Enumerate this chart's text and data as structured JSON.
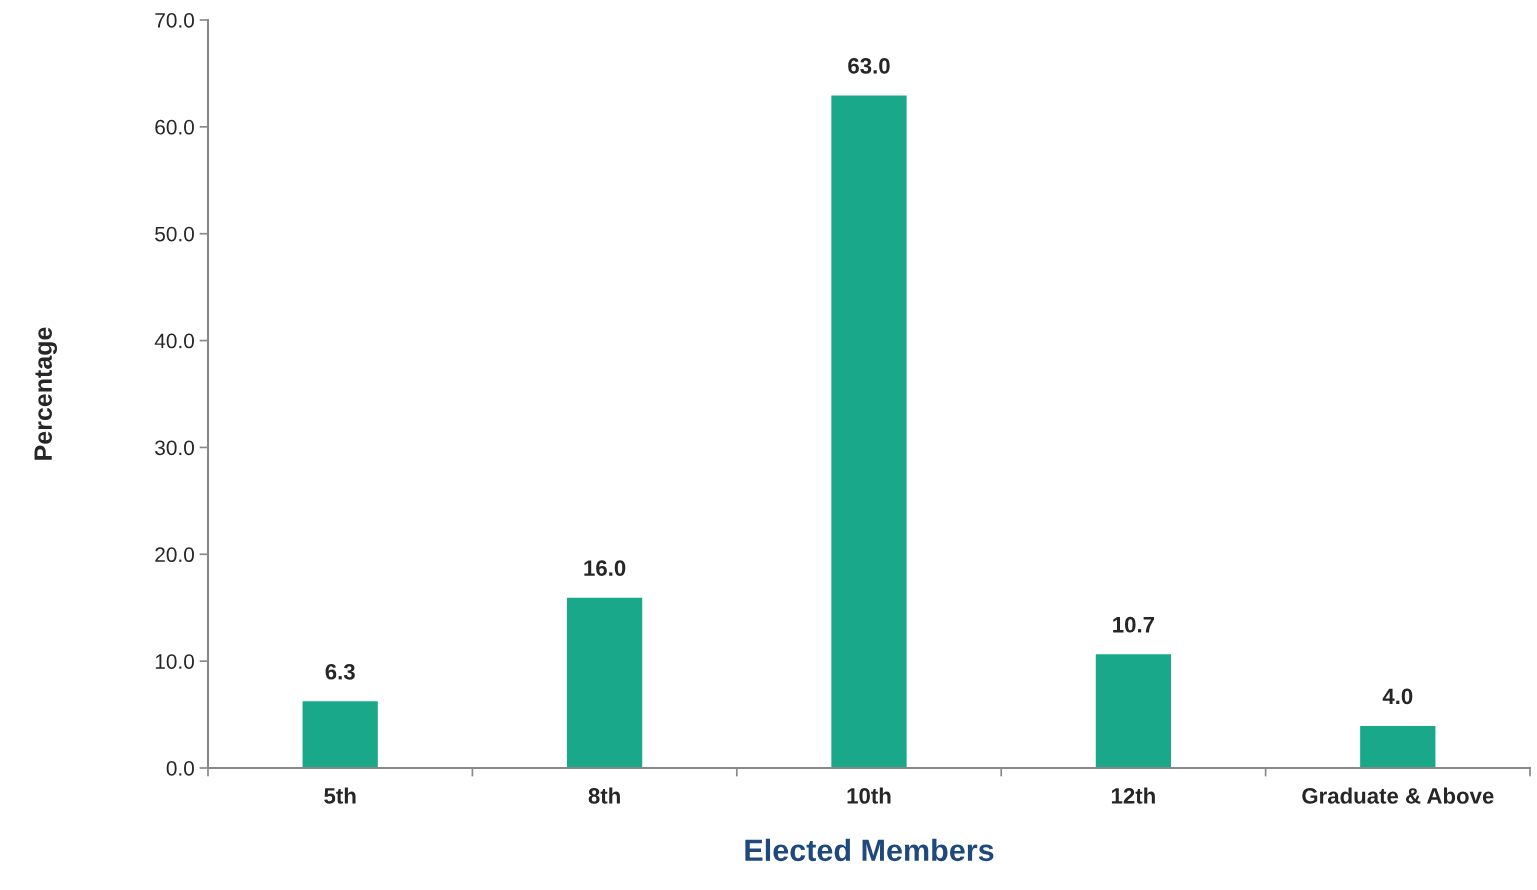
{
  "chart_data": {
    "type": "bar",
    "xlabel": "Elected Members",
    "ylabel": "Percentage",
    "categories": [
      "5th",
      "8th",
      "10th",
      "12th",
      "Graduate & Above"
    ],
    "values": [
      6.3,
      16.0,
      63.0,
      10.7,
      4.0
    ],
    "color": "#1aa88a",
    "value_labels": [
      "6.3",
      "16.0",
      "63.0",
      "10.7",
      "4.0"
    ],
    "ylim": [
      0,
      70
    ],
    "yticks": [
      {
        "value": 0,
        "label": "0.0"
      },
      {
        "value": 10,
        "label": "10.0"
      },
      {
        "value": 20,
        "label": "20.0"
      },
      {
        "value": 30,
        "label": "30.0"
      },
      {
        "value": 40,
        "label": "40.0"
      },
      {
        "value": 50,
        "label": "50.0"
      },
      {
        "value": 60,
        "label": "60.0"
      },
      {
        "value": 70,
        "label": "70.0"
      }
    ],
    "grid": false,
    "legend": false
  }
}
